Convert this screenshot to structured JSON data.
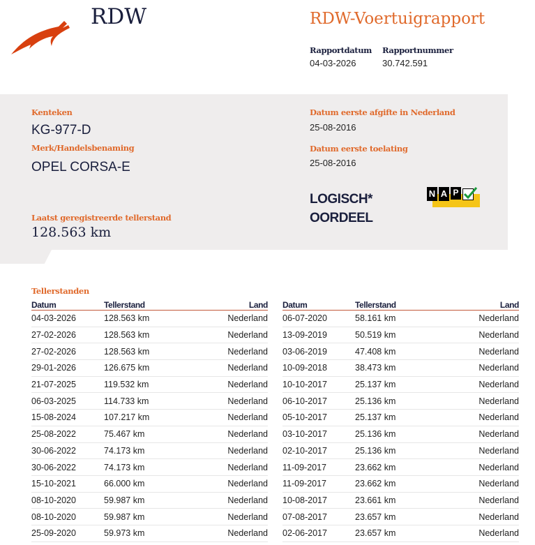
{
  "header": {
    "logo_text": "RDW",
    "title": "RDW-Voertuigrapport",
    "report_date_label": "Rapportdatum",
    "report_date": "04-03-2026",
    "report_number_label": "Rapportnummer",
    "report_number": "30.742.591"
  },
  "vehicle": {
    "plate_label": "Kenteken",
    "plate": "KG-977-D",
    "make_label": "Merk/Handelsbenaming",
    "make": "OPEL CORSA-E",
    "odometer_label": "Laatst geregistreerde tellerstand",
    "odometer": "128.563 km",
    "first_issue_nl_label": "Datum eerste afgifte in Nederland",
    "first_issue_nl": "25-08-2016",
    "first_admission_label": "Datum eerste toelating",
    "first_admission": "25-08-2016",
    "verdict_line1": "LOGISCH*",
    "verdict_line2": "OORDEEL",
    "nap_letters": [
      "N",
      "A",
      "P"
    ],
    "nap_check": true
  },
  "colors": {
    "accent": "#e06a2c",
    "navy": "#1a1f3d",
    "panel": "#efeded",
    "nap_yellow": "#f5c518",
    "nap_green": "#1a9a3a"
  },
  "readings": {
    "title": "Tellerstanden",
    "headers": [
      "Datum",
      "Tellerstand",
      "Land"
    ],
    "left": [
      [
        "04-03-2026",
        "128.563 km",
        "Nederland"
      ],
      [
        "27-02-2026",
        "128.563 km",
        "Nederland"
      ],
      [
        "27-02-2026",
        "128.563 km",
        "Nederland"
      ],
      [
        "29-01-2026",
        "126.675 km",
        "Nederland"
      ],
      [
        "21-07-2025",
        "119.532 km",
        "Nederland"
      ],
      [
        "06-03-2025",
        "114.733 km",
        "Nederland"
      ],
      [
        "15-08-2024",
        "107.217 km",
        "Nederland"
      ],
      [
        "25-08-2022",
        "75.467 km",
        "Nederland"
      ],
      [
        "30-06-2022",
        "74.173 km",
        "Nederland"
      ],
      [
        "30-06-2022",
        "74.173 km",
        "Nederland"
      ],
      [
        "15-10-2021",
        "66.000 km",
        "Nederland"
      ],
      [
        "08-10-2020",
        "59.987 km",
        "Nederland"
      ],
      [
        "08-10-2020",
        "59.987 km",
        "Nederland"
      ],
      [
        "25-09-2020",
        "59.973 km",
        "Nederland"
      ]
    ],
    "right": [
      [
        "06-07-2020",
        "58.161 km",
        "Nederland"
      ],
      [
        "13-09-2019",
        "50.519 km",
        "Nederland"
      ],
      [
        "03-06-2019",
        "47.408 km",
        "Nederland"
      ],
      [
        "10-09-2018",
        "38.473 km",
        "Nederland"
      ],
      [
        "10-10-2017",
        "25.137 km",
        "Nederland"
      ],
      [
        "06-10-2017",
        "25.136 km",
        "Nederland"
      ],
      [
        "05-10-2017",
        "25.137 km",
        "Nederland"
      ],
      [
        "03-10-2017",
        "25.136 km",
        "Nederland"
      ],
      [
        "02-10-2017",
        "25.136 km",
        "Nederland"
      ],
      [
        "11-09-2017",
        "23.662 km",
        "Nederland"
      ],
      [
        "11-09-2017",
        "23.662 km",
        "Nederland"
      ],
      [
        "10-08-2017",
        "23.661 km",
        "Nederland"
      ],
      [
        "07-08-2017",
        "23.657 km",
        "Nederland"
      ],
      [
        "02-06-2017",
        "23.657 km",
        "Nederland"
      ]
    ]
  }
}
